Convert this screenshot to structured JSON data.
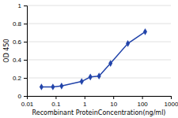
{
  "chart_data": {
    "type": "line",
    "x": [
      0.032,
      0.08,
      0.16,
      0.8,
      1.6,
      3.2,
      8,
      32,
      128
    ],
    "y": [
      0.1,
      0.1,
      0.11,
      0.16,
      0.21,
      0.22,
      0.36,
      0.58,
      0.71
    ],
    "color": "#2244aa",
    "marker": "diamond",
    "log": "x",
    "xlim": [
      0.01,
      1000
    ],
    "xticks": [
      0.01,
      0.1,
      1,
      10,
      100,
      1000
    ],
    "ylim": [
      0,
      1
    ],
    "yticks": [
      0,
      0.2,
      0.4,
      0.6,
      0.8,
      1
    ],
    "xlabel": "Recombinant ProteinConcentration(ng/ml)",
    "ylabel": "OD 450",
    "grid": true
  }
}
